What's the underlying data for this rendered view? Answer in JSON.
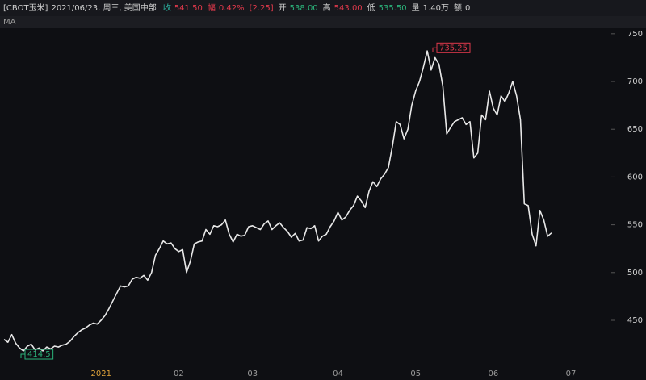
{
  "chart_data": {
    "type": "line",
    "title": "[CBOT玉米]",
    "subtitle": "2021/06/23, 周三, 美国中部",
    "stats": [
      {
        "label": "收",
        "value": "541.50",
        "label_color": "#2bb3a0",
        "color": "#e0394b"
      },
      {
        "label": "幅",
        "value": "0.42%",
        "label_color": "#e0394b",
        "color": "#e0394b"
      },
      {
        "value": "[2.25]",
        "color": "#e0394b"
      },
      {
        "label": "开",
        "value": "538.00",
        "label_color": "#cfcfcf",
        "color": "#2bb37a"
      },
      {
        "label": "高",
        "value": "543.00",
        "label_color": "#cfcfcf",
        "color": "#e0394b"
      },
      {
        "label": "低",
        "value": "535.50",
        "label_color": "#cfcfcf",
        "color": "#2bb37a"
      },
      {
        "label": "量",
        "value": "1.40万",
        "label_color": "#cfcfcf",
        "color": "#cfcfcf"
      },
      {
        "label": "额",
        "value": "0",
        "label_color": "#cfcfcf",
        "color": "#cfcfcf"
      }
    ],
    "indicator": "MA",
    "categories": [
      null,
      null,
      null,
      null,
      null,
      null,
      null,
      null,
      null,
      null,
      null,
      null,
      null,
      null,
      null,
      null,
      null,
      null,
      null,
      null,
      null,
      null,
      null,
      null,
      null,
      "2021",
      null,
      null,
      null,
      null,
      null,
      null,
      null,
      null,
      null,
      null,
      null,
      null,
      null,
      null,
      null,
      null,
      null,
      null,
      null,
      "02",
      null,
      null,
      null,
      null,
      null,
      null,
      null,
      null,
      null,
      null,
      null,
      null,
      null,
      null,
      null,
      null,
      null,
      null,
      "03",
      null,
      null,
      null,
      null,
      null,
      null,
      null,
      null,
      null,
      null,
      null,
      null,
      null,
      null,
      null,
      null,
      null,
      null,
      null,
      null,
      null,
      "04",
      null,
      null,
      null,
      null,
      null,
      null,
      null,
      null,
      null,
      null,
      null,
      null,
      null,
      null,
      null,
      null,
      null,
      null,
      null,
      "05",
      null,
      null,
      null,
      null,
      null,
      null,
      null,
      null,
      null,
      null,
      null,
      null,
      null,
      null,
      null,
      null,
      null,
      null,
      null,
      "06",
      null,
      null,
      null,
      null,
      null,
      null,
      null,
      null,
      null,
      null,
      null,
      null,
      null,
      null,
      null,
      null,
      null,
      null,
      null,
      "07"
    ],
    "values": [
      430,
      427,
      435,
      426,
      421,
      418,
      423,
      425,
      419,
      421,
      418,
      422,
      420,
      423,
      422,
      424,
      425,
      428,
      433,
      437,
      440,
      442,
      445,
      447,
      446,
      450,
      455,
      462,
      470,
      478,
      486,
      485,
      486,
      493,
      495,
      494,
      497,
      492,
      500,
      518,
      525,
      533,
      530,
      531,
      525,
      522,
      524,
      500,
      512,
      530,
      532,
      533,
      545,
      540,
      549,
      548,
      550,
      555,
      540,
      532,
      540,
      538,
      539,
      548,
      549,
      547,
      545,
      551,
      554,
      545,
      549,
      552,
      547,
      543,
      537,
      541,
      533,
      534,
      547,
      546,
      549,
      533,
      538,
      540,
      548,
      554,
      563,
      555,
      558,
      565,
      570,
      580,
      575,
      568,
      585,
      595,
      590,
      598,
      603,
      610,
      632,
      658,
      655,
      640,
      650,
      675,
      690,
      700,
      715,
      732,
      712,
      725,
      718,
      695,
      645,
      652,
      658,
      660,
      662,
      655,
      658,
      620,
      625,
      665,
      660,
      690,
      672,
      665,
      685,
      679,
      688,
      700,
      685,
      660,
      572,
      570,
      540,
      528,
      565,
      555,
      538,
      541.5,
      null,
      null,
      null,
      null,
      null
    ],
    "color": "#e8e8e8",
    "year_label_color": "#e0a33a",
    "ylim": [
      401,
      760
    ],
    "yticks": [
      450,
      500,
      550,
      600,
      650,
      700,
      750
    ],
    "annotations": [
      {
        "value": 735.25,
        "label": "735.25",
        "color": "#e0394b"
      },
      {
        "value": 414.5,
        "label": "414.5",
        "color": "#2bb37a"
      }
    ]
  }
}
